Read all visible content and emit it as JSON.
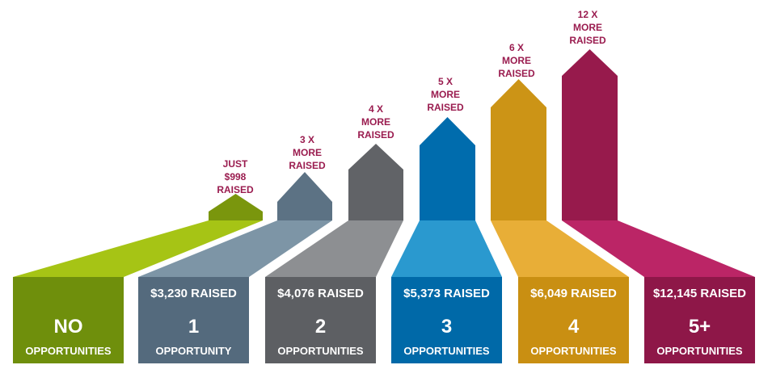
{
  "tiers": [
    {
      "arrow_note": "JUST\n$998\nRAISED",
      "raised": "",
      "big": "NO",
      "label": "OPPORTUNITIES",
      "colors": {
        "box": "#6f8f0c",
        "band": "#a6c415",
        "arrow": "#7a960d"
      }
    },
    {
      "arrow_note": "3 X\nMORE\nRAISED",
      "raised": "$3,230 RAISED",
      "big": "1",
      "label": "OPPORTUNITY",
      "colors": {
        "box": "#546a7d",
        "band": "#7d95a6",
        "arrow": "#5c7284"
      }
    },
    {
      "arrow_note": "4 X\nMORE\nRAISED",
      "raised": "$4,076 RAISED",
      "big": "2",
      "label": "OPPORTUNITIES",
      "colors": {
        "box": "#5d5f63",
        "band": "#8d8f92",
        "arrow": "#616367"
      }
    },
    {
      "arrow_note": "5 X\nMORE\nRAISED",
      "raised": "$5,373 RAISED",
      "big": "3",
      "label": "OPPORTUNITIES",
      "colors": {
        "box": "#0069a8",
        "band": "#2a99cf",
        "arrow": "#006cad"
      }
    },
    {
      "arrow_note": "6 X\nMORE\nRAISED",
      "raised": "$6,049 RAISED",
      "big": "4",
      "label": "OPPORTUNITIES",
      "colors": {
        "box": "#c98f12",
        "band": "#e8ae37",
        "arrow": "#cc9416"
      }
    },
    {
      "arrow_note": "12 X\nMORE\nRAISED",
      "raised": "$12,145 RAISED",
      "big": "5+",
      "label": "OPPORTUNITIES",
      "colors": {
        "box": "#8e1748",
        "band": "#bb2566",
        "arrow": "#971a4c"
      }
    }
  ],
  "note_color": "#9a1c4f"
}
